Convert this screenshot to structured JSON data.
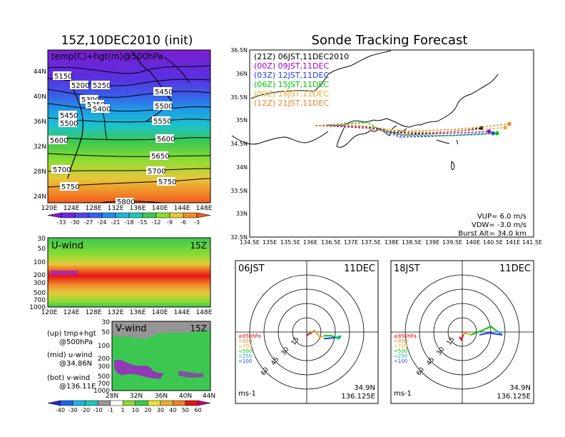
{
  "left_title": "15Z,10DEC2010 (init)",
  "right_title": "Sonde Tracking Forecast",
  "map500": {
    "label": "temp(C)+hgt(m)@500hPa",
    "lat_ticks": [
      "44N",
      "40N",
      "36N",
      "32N",
      "28N",
      "24N"
    ],
    "lon_ticks": [
      "120E",
      "124E",
      "128E",
      "132E",
      "136E",
      "140E",
      "144E",
      "148E"
    ],
    "contour_labels": [
      "5150",
      "5200",
      "5250",
      "5300",
      "5350",
      "5400",
      "5450",
      "5450",
      "5500",
      "5500",
      "5550",
      "5600",
      "5600",
      "5650",
      "5700",
      "5700",
      "5750",
      "5750",
      "5800"
    ]
  },
  "colorbar_temp": [
    "-33",
    "-30",
    "-27",
    "-24",
    "-21",
    "-18",
    "-15",
    "-12",
    "-9",
    "-6",
    "-3"
  ],
  "uwind": {
    "label": "U-wind",
    "time": "15Z",
    "p_ticks": [
      "30",
      "50",
      "100",
      "200",
      "300",
      "500",
      "700",
      "1000"
    ],
    "lon_ticks": [
      "120E",
      "124E",
      "128E",
      "132E",
      "136E",
      "140E",
      "144E",
      "148E"
    ]
  },
  "vwind": {
    "label": "V-wind",
    "time": "15Z",
    "p_ticks": [
      "30",
      "50",
      "100",
      "200",
      "300",
      "500",
      "700",
      "1000"
    ],
    "lat_ticks": [
      "28N",
      "32N",
      "36N",
      "40N",
      "44N"
    ]
  },
  "notes": [
    {
      "a": "(up) tmp+hgt",
      "b": "@500hPa"
    },
    {
      "a": "(mid) u-wind",
      "b": "@34.86N"
    },
    {
      "a": "(bot) v-wind",
      "b": "@136.11E"
    }
  ],
  "colorbar_wind": [
    "-40",
    "-30",
    "-20",
    "-10",
    "-1",
    "1",
    "10",
    "20",
    "30",
    "40",
    "50",
    "60"
  ],
  "track": {
    "legend": [
      {
        "text": "(21Z) 06JST,11DEC2010",
        "color": "#000000"
      },
      {
        "text": "(00Z) 09JST,11DEC",
        "color": "#a000c8"
      },
      {
        "text": "(03Z) 12JST,11DEC",
        "color": "#1e3cff"
      },
      {
        "text": "(06Z) 15JST,11DEC",
        "color": "#00c800"
      },
      {
        "text": "(09Z) 18JST,11DEC",
        "color": "#e6af2d"
      },
      {
        "text": "(12Z) 21JST,11DEC",
        "color": "#f08228"
      }
    ],
    "lat_ticks": [
      "36.5N",
      "36N",
      "35.5N",
      "35N",
      "34.5N",
      "34N",
      "33.5N",
      "33N",
      "32.5N"
    ],
    "lon_ticks": [
      "134.5E",
      "135E",
      "135.5E",
      "136E",
      "136.5E",
      "137E",
      "137.5E",
      "138E",
      "138.5E",
      "139E",
      "139.5E",
      "140E",
      "140.5E",
      "141E",
      "141.5E"
    ],
    "info": [
      "VUP= 6.0 m/s",
      "VDW= -3.0 m/s",
      "Burst Alt= 34.0 km"
    ]
  },
  "hodo": [
    {
      "time": "06JST",
      "date": "11DEC",
      "unit": "ms-1",
      "lat": "34.9N",
      "lon": "136.125E"
    },
    {
      "time": "18JST",
      "date": "11DEC",
      "unit": "ms-1",
      "lat": "34.9N",
      "lon": "136.125E"
    }
  ],
  "hodo_rings": [
    "15",
    "30",
    "45",
    "60"
  ],
  "hodo_legend": [
    {
      "text": "≥850hPa",
      "color": "#e60000"
    },
    {
      "text": "<850",
      "color": "#f08228"
    },
    {
      "text": "<700",
      "color": "#e6af2d"
    },
    {
      "text": "<500",
      "color": "#00c800"
    },
    {
      "text": "<250",
      "color": "#00b4c8"
    },
    {
      "text": "<100",
      "color": "#1e3cff"
    }
  ],
  "chart_data": [
    {
      "type": "line",
      "title": "Sonde Tracking Forecast",
      "x_unit": "deg E",
      "y_unit": "deg N",
      "xlim": [
        134.5,
        141.5
      ],
      "ylim": [
        32.5,
        36.5
      ],
      "series": [
        {
          "name": "(21Z) 06JST,11DEC2010",
          "color": "#000000",
          "x": [
            136.12,
            136.6,
            137.2,
            137.6,
            138.0,
            138.6,
            139.2,
            139.8,
            140.2
          ],
          "y": [
            34.88,
            34.88,
            34.86,
            34.84,
            34.74,
            34.72,
            34.74,
            34.78,
            34.83
          ]
        },
        {
          "name": "(00Z) 09JST,11DEC",
          "color": "#a000c8",
          "x": [
            136.12,
            136.6,
            137.2,
            137.8,
            138.2,
            138.8,
            139.4,
            140.0,
            140.4
          ],
          "y": [
            34.88,
            34.87,
            34.84,
            34.8,
            34.68,
            34.7,
            34.72,
            34.74,
            34.76
          ]
        },
        {
          "name": "(03Z) 12JST,11DEC",
          "color": "#1e3cff",
          "x": [
            136.12,
            136.7,
            137.3,
            137.9,
            138.2,
            138.8,
            139.4,
            140.0,
            140.5
          ],
          "y": [
            34.88,
            34.89,
            34.86,
            34.74,
            34.64,
            34.65,
            34.67,
            34.7,
            34.72
          ]
        },
        {
          "name": "(06Z) 15JST,11DEC",
          "color": "#00c800",
          "x": [
            136.12,
            136.8,
            137.4,
            137.7,
            138.3,
            138.9,
            139.5,
            140.1,
            140.6
          ],
          "y": [
            34.88,
            34.92,
            34.95,
            34.8,
            34.68,
            34.67,
            34.67,
            34.69,
            34.72
          ]
        },
        {
          "name": "(09Z) 18JST,11DEC",
          "color": "#e6af2d",
          "x": [
            136.12,
            136.8,
            137.3,
            137.8,
            138.4,
            139.0,
            139.6,
            140.2,
            140.8
          ],
          "y": [
            34.88,
            34.9,
            34.88,
            34.82,
            34.74,
            34.74,
            34.76,
            34.8,
            34.84
          ]
        },
        {
          "name": "(12Z) 21JST,11DEC",
          "color": "#f08228",
          "x": [
            136.12,
            136.7,
            137.2,
            137.7,
            138.3,
            138.9,
            139.5,
            140.2,
            140.9
          ],
          "y": [
            34.88,
            34.89,
            34.86,
            34.78,
            34.76,
            34.78,
            34.8,
            34.85,
            34.92
          ]
        }
      ]
    },
    {
      "type": "line",
      "title": "06JST 11DEC hodograph",
      "unit": "ms-1",
      "rings": [
        15,
        30,
        45,
        60
      ],
      "segments": [
        {
          "color": "#e60000",
          "u": [
            0,
            2,
            5
          ],
          "v": [
            -4,
            -2,
            -1
          ]
        },
        {
          "color": "#f08228",
          "u": [
            5,
            8
          ],
          "v": [
            -1,
            2
          ]
        },
        {
          "color": "#e6af2d",
          "u": [
            8,
            14,
            18
          ],
          "v": [
            2,
            -6,
            -4
          ]
        },
        {
          "color": "#00c800",
          "u": [
            18,
            26,
            34,
            36
          ],
          "v": [
            -4,
            -4,
            -7,
            -4
          ]
        },
        {
          "color": "#00b4c8",
          "u": [
            36,
            30
          ],
          "v": [
            -4,
            -6
          ]
        },
        {
          "color": "#1e3cff",
          "u": [
            30,
            18
          ],
          "v": [
            -6,
            -7
          ]
        }
      ]
    },
    {
      "type": "line",
      "title": "18JST 11DEC hodograph",
      "unit": "ms-1",
      "rings": [
        15,
        30,
        45,
        60
      ],
      "segments": [
        {
          "color": "#e60000",
          "u": [
            -3,
            -1,
            1
          ],
          "v": [
            -5,
            -8,
            -3
          ]
        },
        {
          "color": "#f08228",
          "u": [
            1,
            3
          ],
          "v": [
            -3,
            -1
          ]
        },
        {
          "color": "#e6af2d",
          "u": [
            3,
            9
          ],
          "v": [
            -1,
            -3
          ]
        },
        {
          "color": "#00c800",
          "u": [
            9,
            22,
            30,
            35
          ],
          "v": [
            -3,
            2,
            6,
            2
          ]
        },
        {
          "color": "#00b4c8",
          "u": [
            35,
            42
          ],
          "v": [
            2,
            -3
          ]
        },
        {
          "color": "#1e3cff",
          "u": [
            42,
            28,
            18
          ],
          "v": [
            -3,
            -1,
            -3
          ]
        }
      ]
    },
    {
      "type": "heatmap",
      "title": "U-wind 15Z",
      "description_values": "cross-section at 34.86N, 1000-30 hPa",
      "levels_hpa": [
        1000,
        700,
        500,
        300,
        200,
        100,
        50,
        30
      ],
      "profile_ms": [
        5,
        15,
        30,
        50,
        58,
        35,
        20,
        15
      ]
    }
  ]
}
